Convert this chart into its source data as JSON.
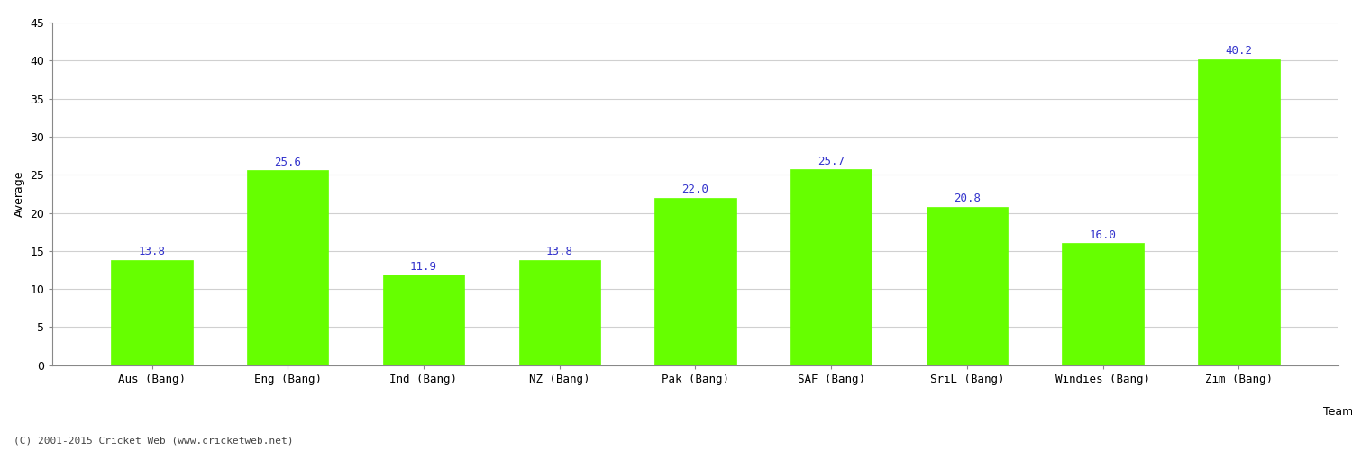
{
  "title": "",
  "categories": [
    "Aus (Bang)",
    "Eng (Bang)",
    "Ind (Bang)",
    "NZ (Bang)",
    "Pak (Bang)",
    "SAF (Bang)",
    "SriL (Bang)",
    "Windies (Bang)",
    "Zim (Bang)"
  ],
  "values": [
    13.8,
    25.6,
    11.9,
    13.8,
    22.0,
    25.7,
    20.8,
    16.0,
    40.2
  ],
  "bar_color": "#66ff00",
  "bar_edge_color": "#66ff00",
  "label_color": "#3333cc",
  "xlabel": "Team",
  "ylabel": "Average",
  "ylim": [
    0,
    45
  ],
  "yticks": [
    0,
    5,
    10,
    15,
    20,
    25,
    30,
    35,
    40,
    45
  ],
  "grid_color": "#d0d0d0",
  "bg_color": "#ffffff",
  "footer": "(C) 2001-2015 Cricket Web (www.cricketweb.net)",
  "axis_label_fontsize": 9,
  "tick_fontsize": 9,
  "value_label_fontsize": 9,
  "xlabel_fontsize": 9,
  "footer_fontsize": 8
}
